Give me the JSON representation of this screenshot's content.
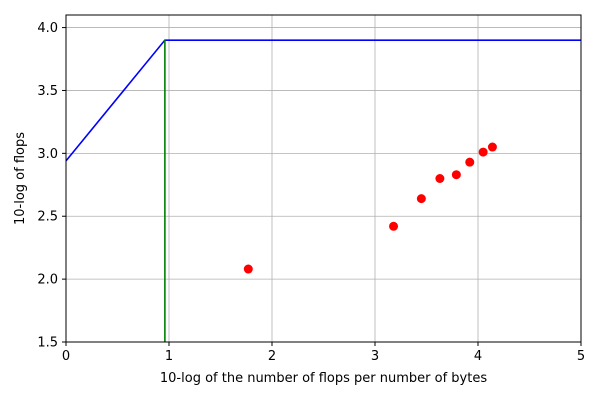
{
  "chart_data": {
    "type": "line",
    "xlabel": "10-log of the number of flops per number of bytes",
    "ylabel": "10-log of flops",
    "xlim": [
      0,
      5
    ],
    "ylim": [
      1.5,
      4.1
    ],
    "grid": true,
    "x_ticks": [
      0,
      1,
      2,
      3,
      4,
      5
    ],
    "x_tick_labels": [
      "0",
      "1",
      "2",
      "3",
      "4",
      "5"
    ],
    "y_ticks": [
      1.5,
      2.0,
      2.5,
      3.0,
      3.5,
      4.0
    ],
    "y_tick_labels": [
      "1.5",
      "2.0",
      "2.5",
      "3.0",
      "3.5",
      "4.0"
    ],
    "series": [
      {
        "kind": "line",
        "color": "#0000ff",
        "x": [
          0,
          0.96,
          5
        ],
        "y": [
          2.94,
          3.9,
          3.9
        ]
      },
      {
        "kind": "line",
        "color": "#008000",
        "x": [
          0.96,
          0.96
        ],
        "y": [
          1.5,
          3.9
        ]
      },
      {
        "kind": "scatter",
        "color": "#ff0000",
        "x": [
          1.77,
          3.18,
          3.45,
          3.63,
          3.79,
          3.92,
          4.05,
          4.14
        ],
        "y": [
          2.08,
          2.42,
          2.64,
          2.8,
          2.83,
          2.93,
          3.01,
          3.05
        ]
      }
    ]
  }
}
